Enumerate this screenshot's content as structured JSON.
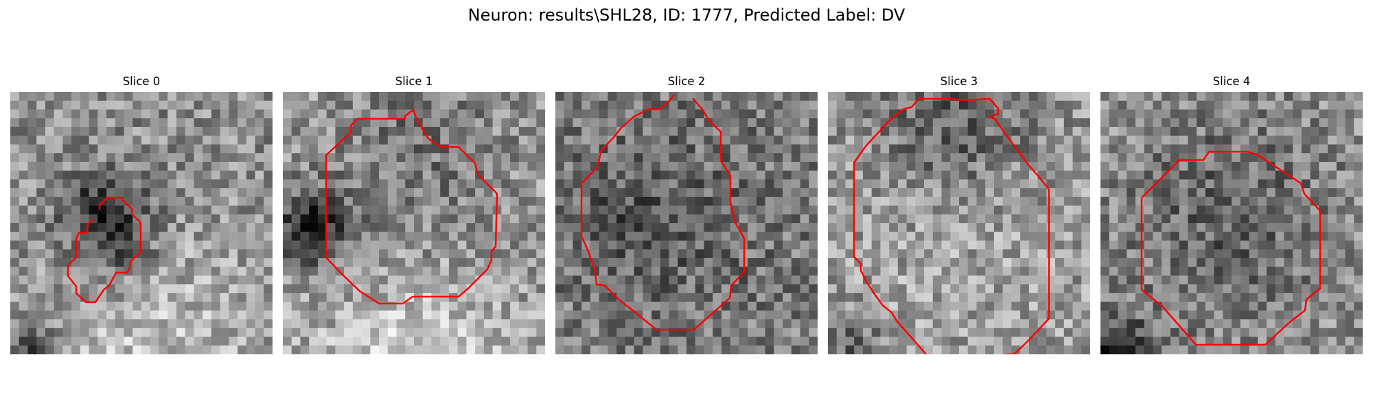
{
  "figure": {
    "title": "Neuron: results\\SHL28, ID: 1777, Predicted Label: DV",
    "contour_color": "#ff0000",
    "colormap": "grayscale",
    "slices": [
      {
        "label": "Slice 0"
      },
      {
        "label": "Slice 1"
      },
      {
        "label": "Slice 2"
      },
      {
        "label": "Slice 3"
      },
      {
        "label": "Slice 4"
      }
    ]
  }
}
